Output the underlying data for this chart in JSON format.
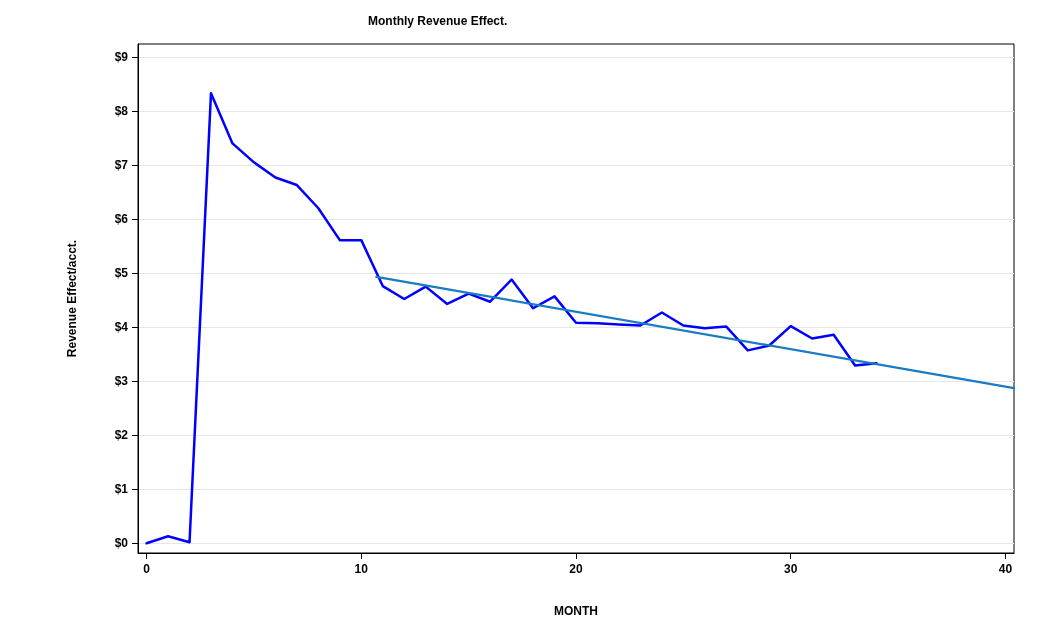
{
  "chart_data": {
    "type": "line",
    "title": "Monthly Revenue Effect.",
    "xlabel": "MONTH",
    "ylabel": "Revenue Effect/acct.",
    "series": [
      {
        "color": "#0000ff",
        "x": [
          0,
          1,
          2,
          3,
          4,
          5,
          6,
          7,
          8,
          9,
          10,
          11,
          12,
          13,
          14,
          15,
          16,
          17,
          18,
          19,
          20,
          21,
          22,
          23,
          24,
          25,
          26,
          27,
          28,
          29,
          30,
          31,
          32,
          33,
          34
        ],
        "values": [
          0.0,
          0.13,
          0.02,
          8.33,
          7.4,
          7.05,
          6.77,
          6.63,
          6.2,
          5.61,
          5.61,
          4.76,
          4.52,
          4.75,
          4.43,
          4.62,
          4.47,
          4.88,
          4.35,
          4.57,
          4.08,
          4.07,
          4.05,
          4.03,
          4.27,
          4.03,
          3.98,
          4.01,
          3.57,
          3.66,
          4.02,
          3.79,
          3.86,
          3.29,
          3.33
        ]
      },
      {
        "type": "line",
        "color": "#1a7ac4",
        "x": [
          10.7,
          40.4
        ],
        "values": [
          4.93,
          2.87
        ]
      }
    ],
    "xlim": [
      -0.4,
      40.4
    ],
    "xticks": [
      0,
      10,
      20,
      30,
      40
    ],
    "ylim": [
      -0.18,
      9.24
    ],
    "yticks": [
      {
        "value": 0,
        "label": "$0"
      },
      {
        "value": 1,
        "label": "$1"
      },
      {
        "value": 2,
        "label": "$2"
      },
      {
        "value": 3,
        "label": "$3"
      },
      {
        "value": 4,
        "label": "$4"
      },
      {
        "value": 5,
        "label": "$5"
      },
      {
        "value": 6,
        "label": "$6"
      },
      {
        "value": 7,
        "label": "$7"
      },
      {
        "value": 8,
        "label": "$8"
      },
      {
        "value": 9,
        "label": "$9"
      }
    ],
    "grid": "y",
    "marker": "none",
    "line_style": "solid"
  }
}
